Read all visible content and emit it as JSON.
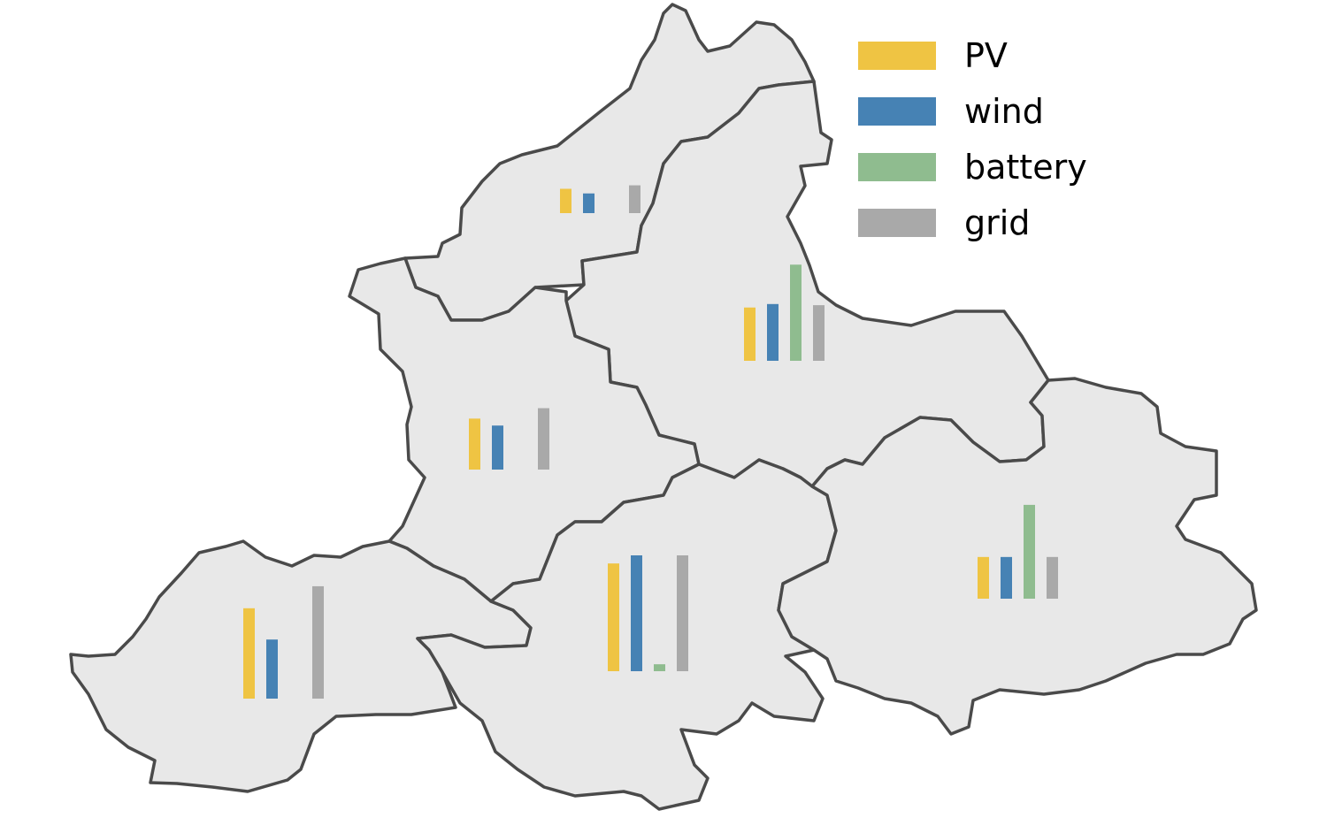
{
  "colors": {
    "pv": "#efc443",
    "wind": "#4682b4",
    "battery": "#8fbc8f",
    "grid": "#a9a9a9",
    "region_fill": "#e8e8e8",
    "region_stroke": "#4a4a4a"
  },
  "legend": {
    "placement": "top-right",
    "items": [
      {
        "key": "pv",
        "label": "PV"
      },
      {
        "key": "wind",
        "label": "wind"
      },
      {
        "key": "battery",
        "label": "battery"
      },
      {
        "key": "grid",
        "label": "grid"
      }
    ]
  },
  "chart_data": {
    "type": "bar",
    "title": "",
    "series_keys": [
      "pv",
      "wind",
      "battery",
      "grid"
    ],
    "value_range": [
      0,
      1
    ],
    "regions": [
      {
        "id": "north",
        "values": {
          "pv": 0.21,
          "wind": 0.17,
          "battery": 0,
          "grid": 0.24
        }
      },
      {
        "id": "northeast",
        "values": {
          "pv": 0.46,
          "wind": 0.49,
          "battery": 0.83,
          "grid": 0.48
        }
      },
      {
        "id": "west",
        "values": {
          "pv": 0.44,
          "wind": 0.38,
          "battery": 0,
          "grid": 0.53
        }
      },
      {
        "id": "southwest",
        "values": {
          "pv": 0.78,
          "wind": 0.51,
          "battery": 0,
          "grid": 0.97
        }
      },
      {
        "id": "south",
        "values": {
          "pv": 0.93,
          "wind": 1.0,
          "battery": 0.06,
          "grid": 1.0
        }
      },
      {
        "id": "east",
        "values": {
          "pv": 0.36,
          "wind": 0.36,
          "battery": 0.81,
          "grid": 0.36
        }
      }
    ]
  }
}
